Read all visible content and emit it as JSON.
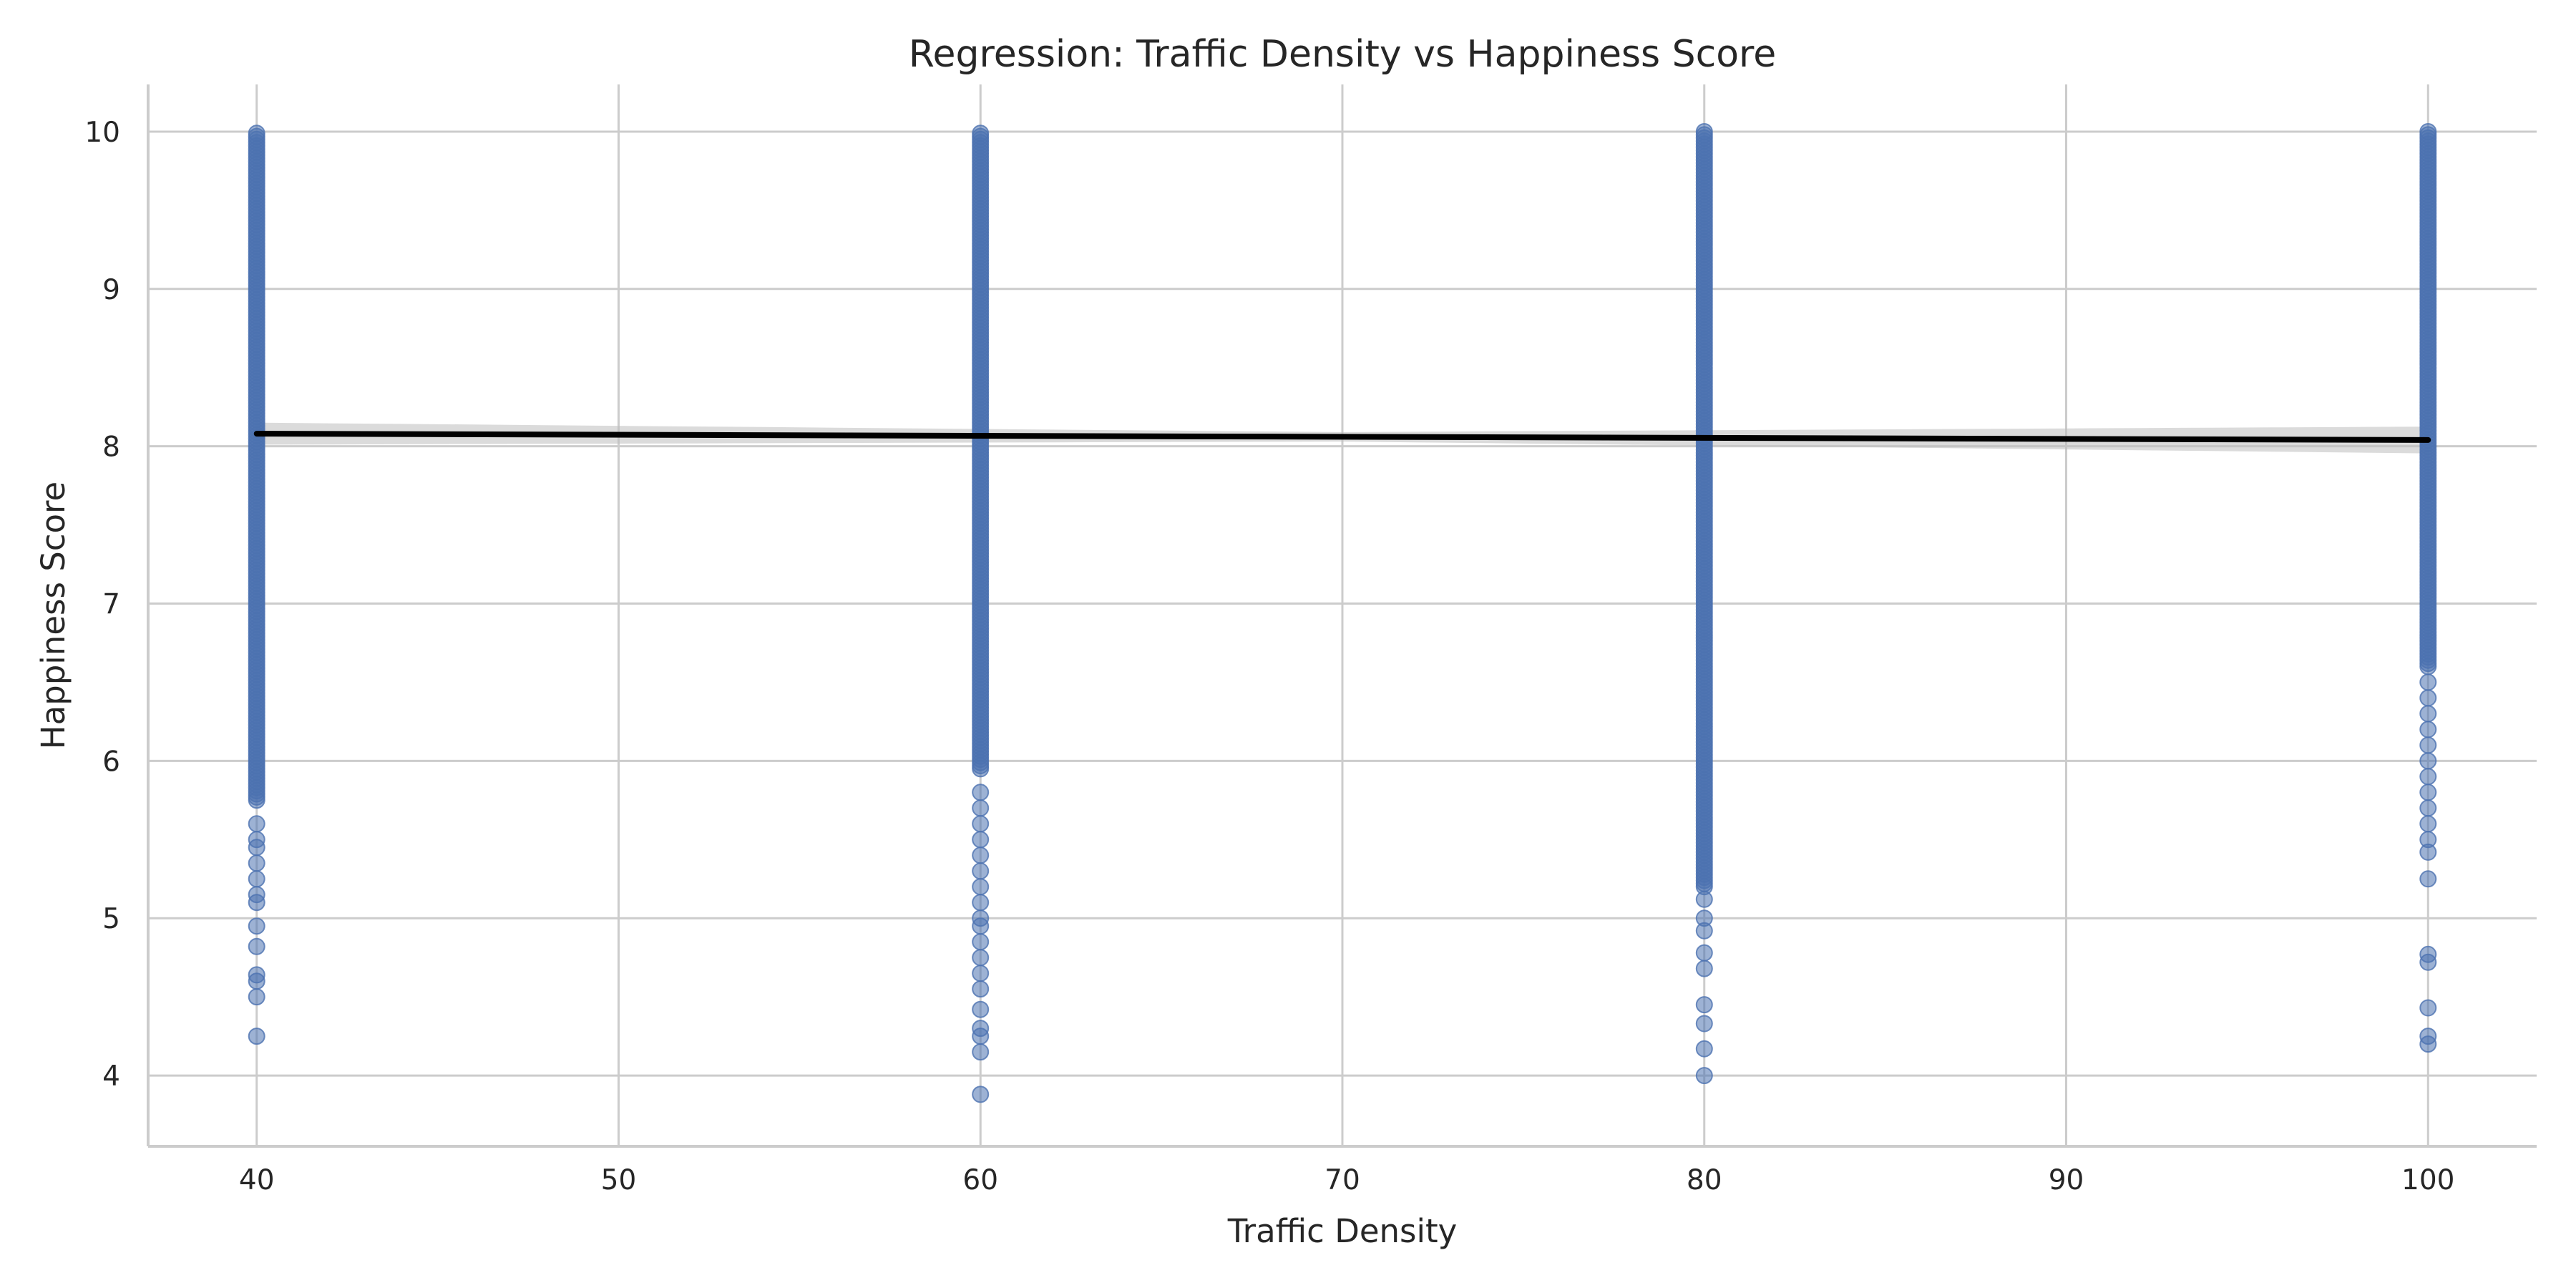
{
  "chart_data": {
    "type": "scatter",
    "title": "Regression: Traffic Density vs Happiness Score",
    "xlabel": "Traffic Density",
    "ylabel": "Happiness Score",
    "xlim": [
      37,
      103
    ],
    "ylim": [
      3.55,
      10.3
    ],
    "xticks": [
      40,
      50,
      60,
      70,
      80,
      90,
      100
    ],
    "yticks": [
      4,
      5,
      6,
      7,
      8,
      9,
      10
    ],
    "grid": true,
    "legend": "none",
    "colors": {
      "points": "#4c72b0",
      "regression_line": "#000000",
      "confidence_band": "#bdbdbd"
    },
    "categories_x": [
      40,
      60,
      80,
      100
    ],
    "point_summary": [
      {
        "x": 40,
        "dense_min": 5.75,
        "max": 10.0,
        "outliers": [
          5.6,
          5.5,
          5.45,
          5.35,
          5.25,
          5.15,
          5.1,
          4.95,
          4.82,
          4.64,
          4.6,
          4.5,
          4.25
        ]
      },
      {
        "x": 60,
        "dense_min": 5.95,
        "max": 10.0,
        "outliers": [
          5.8,
          5.7,
          5.6,
          5.5,
          5.4,
          5.3,
          5.2,
          5.1,
          5.0,
          4.95,
          4.85,
          4.75,
          4.65,
          4.55,
          4.42,
          4.3,
          4.25,
          4.15,
          3.88
        ]
      },
      {
        "x": 80,
        "dense_min": 5.2,
        "max": 10.0,
        "outliers": [
          5.12,
          5.0,
          4.92,
          4.78,
          4.68,
          4.45,
          4.33,
          4.17,
          4.0
        ]
      },
      {
        "x": 100,
        "dense_min": 6.6,
        "max": 10.0,
        "outliers": [
          6.5,
          6.4,
          6.3,
          6.2,
          6.1,
          6.0,
          5.9,
          5.8,
          5.7,
          5.6,
          5.5,
          5.42,
          5.25,
          4.77,
          4.72,
          4.43,
          4.25,
          4.2
        ]
      }
    ],
    "regression": {
      "x": [
        40,
        100
      ],
      "y": [
        8.08,
        8.04
      ],
      "ci_halfwidth_at": [
        [
          40,
          0.07
        ],
        [
          70,
          0.03
        ],
        [
          100,
          0.085
        ]
      ]
    }
  }
}
